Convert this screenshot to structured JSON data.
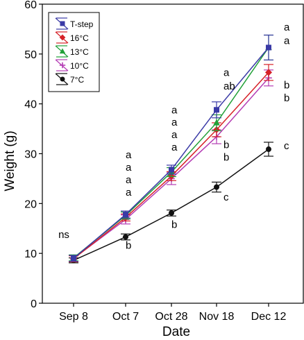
{
  "chart_data": {
    "type": "line",
    "xlabel": "Date",
    "ylabel": "Weight (g)",
    "categories": [
      "Sep 8",
      "Oct 7",
      "Oct 28",
      "Nov 18",
      "Dec 12"
    ],
    "ylim": [
      0,
      60
    ],
    "yticks": [
      0,
      10,
      20,
      30,
      40,
      50,
      60
    ],
    "grid": false,
    "legend_position": "top-left",
    "series": [
      {
        "name": "T-step",
        "color": "#3a3aa6",
        "marker": "square",
        "values": [
          9.0,
          17.8,
          26.8,
          38.8,
          51.3
        ],
        "errors": [
          0.6,
          0.7,
          0.9,
          1.6,
          2.5
        ]
      },
      {
        "name": "16°C",
        "color": "#d62027",
        "marker": "diamond",
        "values": [
          8.9,
          17.2,
          25.5,
          34.8,
          46.3
        ],
        "errors": [
          0.6,
          0.7,
          0.9,
          1.4,
          1.6
        ]
      },
      {
        "name": "13°C",
        "color": "#21a038",
        "marker": "triangle",
        "values": [
          9.1,
          17.6,
          26.3,
          36.2,
          51.3
        ],
        "errors": [
          0.6,
          0.7,
          0.9,
          1.6,
          2.5
        ]
      },
      {
        "name": "10°C",
        "color": "#b43cb4",
        "marker": "cross",
        "values": [
          9.0,
          16.8,
          25.0,
          33.4,
          45.2
        ],
        "errors": [
          0.6,
          0.9,
          1.2,
          1.4,
          1.6
        ]
      },
      {
        "name": "7°C",
        "color": "#111111",
        "marker": "circle",
        "values": [
          8.6,
          13.3,
          18.1,
          23.3,
          30.9
        ],
        "errors": [
          0.5,
          0.6,
          0.6,
          1.0,
          1.4
        ]
      }
    ],
    "annotations": [
      {
        "category": "Sep 8",
        "y": 13.8,
        "text": "ns"
      },
      {
        "category": "Oct 7",
        "y": 29.8,
        "text": "a"
      },
      {
        "category": "Oct 7",
        "y": 27.3,
        "text": "a"
      },
      {
        "category": "Oct 7",
        "y": 24.8,
        "text": "a"
      },
      {
        "category": "Oct 7",
        "y": 22.3,
        "text": "a"
      },
      {
        "category": "Oct 7",
        "y": 11.6,
        "text": "b"
      },
      {
        "category": "Oct 28",
        "y": 38.8,
        "text": "a"
      },
      {
        "category": "Oct 28",
        "y": 36.3,
        "text": "a"
      },
      {
        "category": "Oct 28",
        "y": 33.8,
        "text": "a"
      },
      {
        "category": "Oct 28",
        "y": 31.3,
        "text": "a"
      },
      {
        "category": "Oct 28",
        "y": 15.8,
        "text": "b"
      },
      {
        "category": "Nov 18",
        "y": 46.3,
        "text": "a"
      },
      {
        "category": "Nov 18",
        "y": 43.6,
        "text": "ab"
      },
      {
        "category": "Nov 18",
        "y": 31.8,
        "text": "b"
      },
      {
        "category": "Nov 18",
        "y": 29.3,
        "text": "b"
      },
      {
        "category": "Nov 18",
        "y": 21.3,
        "text": "c"
      },
      {
        "category": "Dec 12",
        "y": 55.4,
        "text": "a"
      },
      {
        "category": "Dec 12",
        "y": 52.7,
        "text": "a"
      },
      {
        "category": "Dec 12",
        "y": 43.8,
        "text": "b"
      },
      {
        "category": "Dec 12",
        "y": 41.2,
        "text": "b"
      },
      {
        "category": "Dec 12",
        "y": 31.6,
        "text": "c"
      }
    ]
  }
}
